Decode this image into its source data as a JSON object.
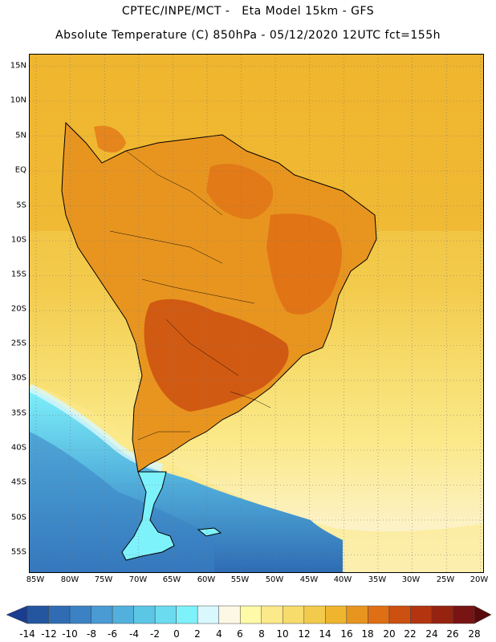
{
  "header": {
    "line1": "CPTEC/INPE/MCT -   Eta Model 15km - GFS",
    "line2": "Absolute Temperature (C) 850hPa - 05/12/2020 12UTC fct=155h"
  },
  "axes": {
    "latitudes": [
      "15N",
      "10N",
      "5N",
      "EQ",
      "5S",
      "10S",
      "15S",
      "20S",
      "25S",
      "30S",
      "35S",
      "40S",
      "45S",
      "50S",
      "55S"
    ],
    "longitudes": [
      "85W",
      "80W",
      "75W",
      "70W",
      "65W",
      "60W",
      "55W",
      "50W",
      "45W",
      "40W",
      "35W",
      "30W",
      "25W",
      "20W"
    ]
  },
  "colorbar": {
    "labels": [
      "-14",
      "-12",
      "-10",
      "-8",
      "-6",
      "-4",
      "-2",
      "0",
      "2",
      "4",
      "6",
      "8",
      "10",
      "12",
      "14",
      "16",
      "18",
      "20",
      "22",
      "24",
      "26",
      "28"
    ],
    "colors": [
      "#1a3d8f",
      "#2456a0",
      "#2f6cb3",
      "#3b82c4",
      "#4a9ad4",
      "#52b0dc",
      "#5cc6e6",
      "#6bdcef",
      "#7ef2fb",
      "#d8f8fd",
      "#fdf7e6",
      "#fefaa8",
      "#fbe98a",
      "#f7dc6c",
      "#f3cb4c",
      "#efb52e",
      "#e89520",
      "#df6f14",
      "#cc5010",
      "#b3340e",
      "#962210",
      "#781414",
      "#5a0a0a"
    ]
  },
  "map": {
    "ocean_warm": "#f5c53a",
    "ocean_mild": "#fbe98a",
    "land_base": "#e89520",
    "land_hot": "#cc5010",
    "south_cold": "#5cc6e6",
    "coastline": "#000000"
  }
}
